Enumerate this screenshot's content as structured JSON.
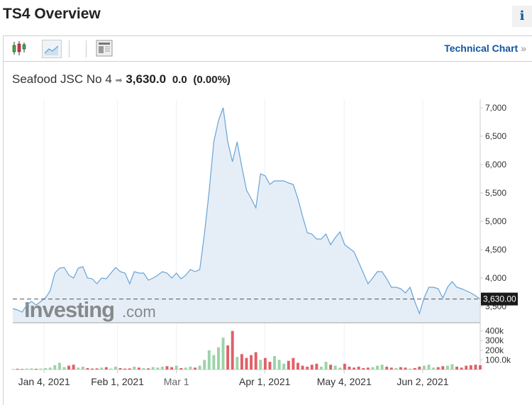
{
  "page": {
    "title": "TS4 Overview",
    "info_label": "i"
  },
  "toolbar": {
    "icons": [
      "candlestick-icon",
      "area-chart-icon",
      "news-layout-icon"
    ],
    "technical_chart": "Technical Chart",
    "chevron": "»"
  },
  "quote": {
    "name": "Seafood JSC No 4",
    "arrow": "➡",
    "price": "3,630.0",
    "change": "0.0",
    "change_pct": "(0.00%)"
  },
  "colors": {
    "line": "#6aa3d5",
    "area": "#e5eef7",
    "up": "#9bd3a8",
    "down": "#e06066",
    "link": "#1256a0"
  },
  "watermark": "Investing.com",
  "chart_data": {
    "type": "area",
    "price_axis": {
      "ticks": [
        "7,000",
        "6,500",
        "6,000",
        "5,500",
        "5,000",
        "4,500",
        "4,000",
        "3,500"
      ],
      "values": [
        7000,
        6500,
        6000,
        5500,
        5000,
        4500,
        4000,
        3500
      ],
      "range": [
        3210,
        7150
      ]
    },
    "last_price_label": "3,630.00",
    "last_price": 3630,
    "volume_axis": {
      "ticks": [
        "400k",
        "300k",
        "200k",
        "100.0k"
      ],
      "values": [
        400000,
        300000,
        200000,
        100000
      ]
    },
    "date_labels": [
      {
        "label": "Jan 4, 2021",
        "pos": 0.067
      },
      {
        "label": "Feb 1, 2021",
        "pos": 0.224
      },
      {
        "label": "Mar 1",
        "pos": 0.35
      },
      {
        "label": "Apr 1, 2021",
        "pos": 0.539
      },
      {
        "label": "May 4, 2021",
        "pos": 0.709
      },
      {
        "label": "Jun 2, 2021",
        "pos": 0.877
      }
    ],
    "price": [
      3463,
      3438,
      3400,
      3525,
      3588,
      3525,
      3588,
      3650,
      3775,
      4088,
      4175,
      4188,
      4050,
      4000,
      4175,
      4200,
      4000,
      3988,
      3900,
      4000,
      3988,
      4088,
      4188,
      4113,
      4088,
      3900,
      4113,
      4088,
      4088,
      3963,
      4000,
      4050,
      4113,
      4088,
      4000,
      4088,
      3988,
      4050,
      4150,
      4113,
      4150,
      4775,
      5525,
      6400,
      6775,
      7000,
      6400,
      6050,
      6400,
      5963,
      5550,
      5400,
      5238,
      5838,
      5800,
      5650,
      5713,
      5713,
      5713,
      5675,
      5650,
      5400,
      5088,
      4800,
      4775,
      4688,
      4688,
      4775,
      4588,
      4713,
      4813,
      4588,
      4525,
      4463,
      4275,
      4088,
      3900,
      4000,
      4113,
      4113,
      3988,
      3838,
      3838,
      3813,
      3738,
      3838,
      3588,
      3375,
      3650,
      3838,
      3838,
      3813,
      3650,
      3838,
      3938,
      3838,
      3813,
      3775,
      3738,
      3688,
      3630
    ],
    "volume": [
      5000,
      8000,
      6000,
      10000,
      12000,
      8000,
      10000,
      15000,
      20000,
      45000,
      70000,
      25000,
      40000,
      50000,
      20000,
      30000,
      15000,
      10000,
      12000,
      20000,
      25000,
      10000,
      30000,
      15000,
      10000,
      12000,
      30000,
      20000,
      15000,
      12000,
      25000,
      20000,
      30000,
      35000,
      25000,
      40000,
      15000,
      20000,
      30000,
      20000,
      40000,
      100000,
      200000,
      150000,
      230000,
      330000,
      250000,
      400000,
      130000,
      160000,
      120000,
      150000,
      180000,
      100000,
      120000,
      80000,
      140000,
      100000,
      60000,
      90000,
      120000,
      70000,
      40000,
      30000,
      50000,
      60000,
      30000,
      80000,
      50000,
      40000,
      20000,
      60000,
      30000,
      20000,
      30000,
      15000,
      20000,
      25000,
      40000,
      50000,
      30000,
      20000,
      15000,
      25000,
      20000,
      10000,
      15000,
      30000,
      40000,
      50000,
      20000,
      25000,
      35000,
      40000,
      55000,
      30000,
      20000,
      40000,
      45000,
      50000,
      45000
    ]
  }
}
